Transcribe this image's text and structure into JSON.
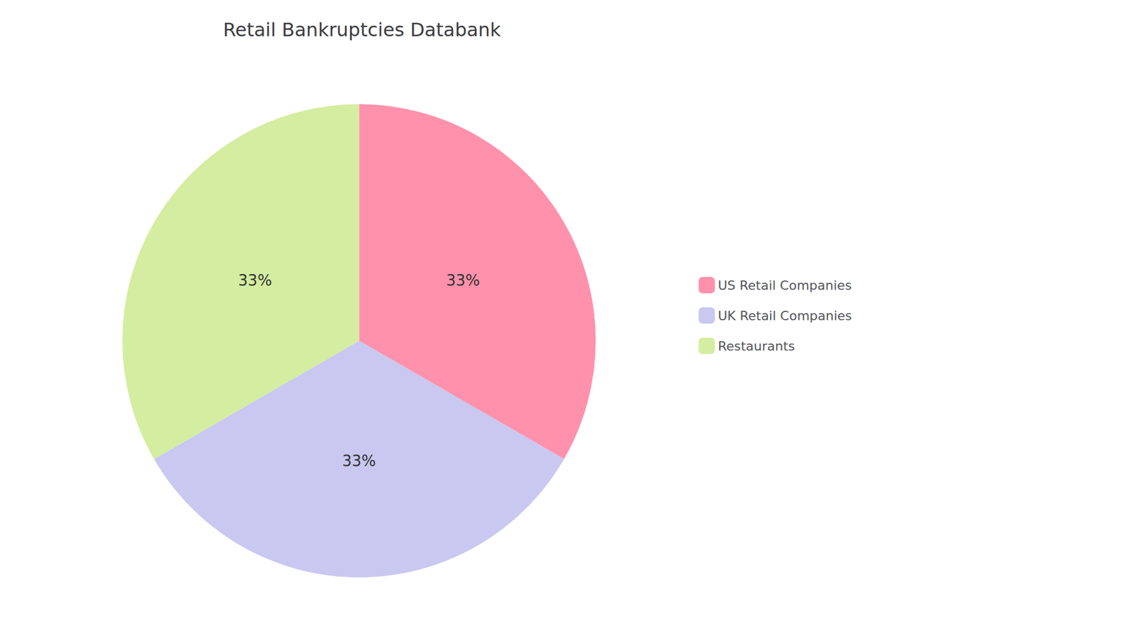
{
  "chart_data": {
    "type": "pie",
    "title": "Retail Bankruptcies Databank",
    "categories": [
      "US Retail Companies",
      "UK Retail Companies",
      "Restaurants"
    ],
    "values": [
      33,
      33,
      33
    ],
    "value_labels": [
      "33%",
      "33%",
      "33%"
    ],
    "colors": [
      "#FF91AC",
      "#C8C8F0",
      "#D4EDA0"
    ],
    "data_labels": true,
    "legend": "right"
  }
}
